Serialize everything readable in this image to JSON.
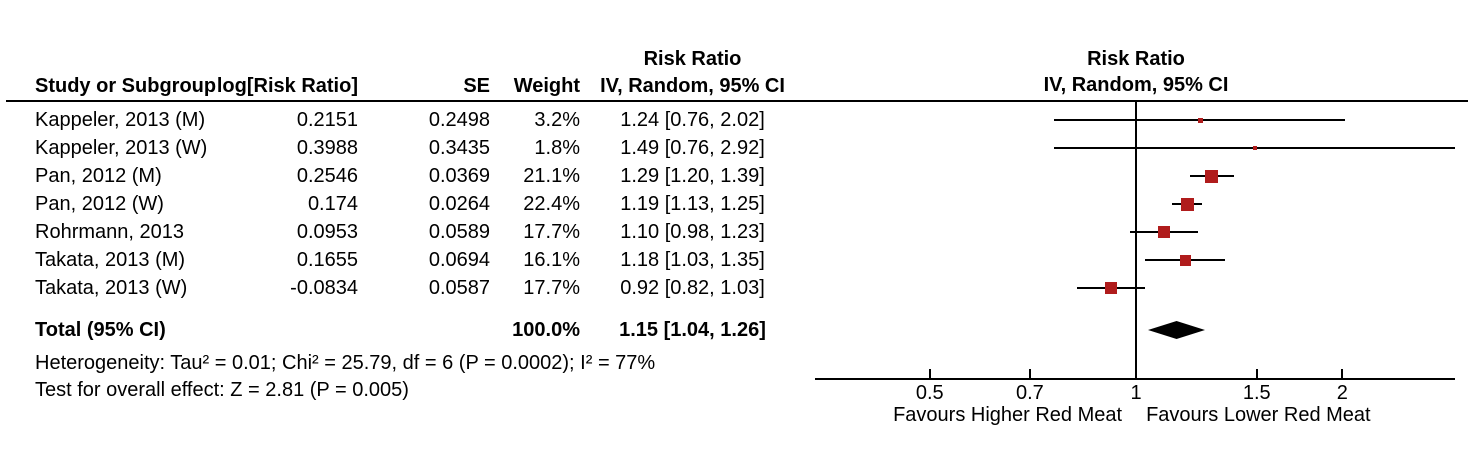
{
  "figure": {
    "kind": "meta-analysis forest plot"
  },
  "colors": {
    "marker": "#B01C1C",
    "line": "#000000",
    "diamond": "#000000",
    "text": "#000000",
    "background": "#FFFFFF"
  },
  "table": {
    "headers": {
      "study": "Study or Subgroup",
      "log_risk_ratio": "log[Risk Ratio]",
      "se": "SE",
      "weight": "Weight",
      "ci_top": "Risk Ratio",
      "ci_bottom": "IV, Random, 95% CI",
      "plot_top": "Risk Ratio",
      "plot_bottom": "IV, Random, 95% CI"
    }
  },
  "footer": {
    "heterogeneity": "Heterogeneity: Tau² = 0.01; Chi² = 25.79, df = 6 (P = 0.0002); I² = 77%",
    "overall_effect": "Test for overall effect: Z = 2.81 (P = 0.005)"
  },
  "chart_data": {
    "type": "forest",
    "x_scale": "log",
    "x_ticks": [
      "0.5",
      "0.7",
      "1",
      "1.5",
      "2"
    ],
    "x_min": 0.34,
    "x_max": 2.92,
    "null_line": 1,
    "xlabel_left": "Favours Higher Red Meat",
    "xlabel_right": "Favours Lower Red Meat",
    "effect_label": "Risk Ratio",
    "model_label": "IV, Random, 95% CI",
    "studies": [
      {
        "study": "Kappeler, 2013 (M)",
        "log_rr": "0.2151",
        "se": "0.2498",
        "weight_label": "3.2%",
        "ci_label": "1.24 [0.76, 2.02]",
        "rr": 1.24,
        "low": 0.76,
        "high": 2.02,
        "weight": 3.2
      },
      {
        "study": "Kappeler, 2013 (W)",
        "log_rr": "0.3988",
        "se": "0.3435",
        "weight_label": "1.8%",
        "ci_label": "1.49 [0.76, 2.92]",
        "rr": 1.49,
        "low": 0.76,
        "high": 2.92,
        "weight": 1.8
      },
      {
        "study": "Pan, 2012 (M)",
        "log_rr": "0.2546",
        "se": "0.0369",
        "weight_label": "21.1%",
        "ci_label": "1.29 [1.20, 1.39]",
        "rr": 1.29,
        "low": 1.2,
        "high": 1.39,
        "weight": 21.1
      },
      {
        "study": "Pan, 2012 (W)",
        "log_rr": "0.174",
        "se": "0.0264",
        "weight_label": "22.4%",
        "ci_label": "1.19 [1.13, 1.25]",
        "rr": 1.19,
        "low": 1.13,
        "high": 1.25,
        "weight": 22.4
      },
      {
        "study": "Rohrmann, 2013",
        "log_rr": "0.0953",
        "se": "0.0589",
        "weight_label": "17.7%",
        "ci_label": "1.10 [0.98, 1.23]",
        "rr": 1.1,
        "low": 0.98,
        "high": 1.23,
        "weight": 17.7
      },
      {
        "study": "Takata, 2013 (M)",
        "log_rr": "0.1655",
        "se": "0.0694",
        "weight_label": "16.1%",
        "ci_label": "1.18 [1.03, 1.35]",
        "rr": 1.18,
        "low": 1.03,
        "high": 1.35,
        "weight": 16.1
      },
      {
        "study": "Takata, 2013 (W)",
        "log_rr": "-0.0834",
        "se": "0.0587",
        "weight_label": "17.7%",
        "ci_label": "0.92 [0.82, 1.03]",
        "rr": 0.92,
        "low": 0.82,
        "high": 1.03,
        "weight": 17.7
      }
    ],
    "total": {
      "label": "Total (95% CI)",
      "weight_label": "100.0%",
      "ci_label": "1.15 [1.04, 1.26]",
      "rr": 1.15,
      "low": 1.04,
      "high": 1.26
    }
  }
}
